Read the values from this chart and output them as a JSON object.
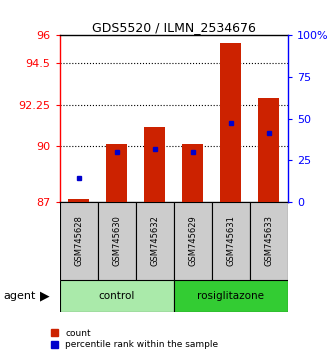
{
  "title": "GDS5520 / ILMN_2534676",
  "samples": [
    "GSM745628",
    "GSM745630",
    "GSM745632",
    "GSM745629",
    "GSM745631",
    "GSM745633"
  ],
  "groups": [
    {
      "name": "control",
      "indices": [
        0,
        1,
        2
      ],
      "color": "#aaeaaa"
    },
    {
      "name": "rosiglitazone",
      "indices": [
        3,
        4,
        5
      ],
      "color": "#33cc33"
    }
  ],
  "bar_heights": [
    87.15,
    90.1,
    91.05,
    90.1,
    95.6,
    92.6
  ],
  "bar_bottom": 87.0,
  "percentile_values_left": [
    88.3,
    89.68,
    89.83,
    89.68,
    91.25,
    90.7
  ],
  "ylim_left": [
    87,
    96
  ],
  "yticks_left": [
    87,
    90,
    92.25,
    94.5,
    96
  ],
  "ytick_labels_left": [
    "87",
    "90",
    "92.25",
    "94.5",
    "96"
  ],
  "ylim_right": [
    0,
    100
  ],
  "yticks_right": [
    0,
    25,
    50,
    75,
    100
  ],
  "ytick_labels_right": [
    "0",
    "25",
    "50",
    "75",
    "100%"
  ],
  "bar_color": "#cc2200",
  "percentile_color": "#0000cc",
  "bg_color": "#ffffff",
  "agent_label": "agent",
  "bar_width": 0.55,
  "figsize": [
    3.31,
    3.54
  ],
  "dpi": 100,
  "sample_box_color": "#cccccc",
  "legend_items": [
    "count",
    "percentile rank within the sample"
  ]
}
